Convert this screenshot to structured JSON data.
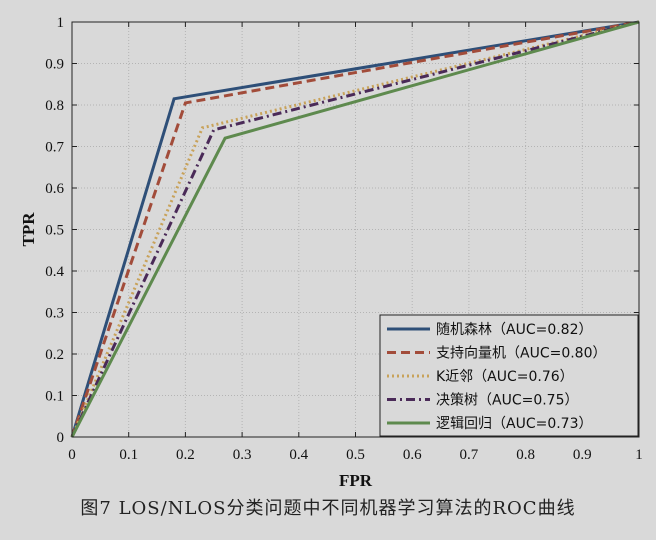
{
  "caption": "图7  LOS/NLOS分类问题中不同机器学习算法的ROC曲线",
  "chart_data": {
    "type": "line",
    "xlabel": "FPR",
    "ylabel": "TPR",
    "xlim": [
      0,
      1
    ],
    "ylim": [
      0,
      1
    ],
    "xticks": [
      0,
      0.1,
      0.2,
      0.3,
      0.4,
      0.5,
      0.6,
      0.7,
      0.8,
      0.9,
      1
    ],
    "yticks": [
      0,
      0.1,
      0.2,
      0.3,
      0.4,
      0.5,
      0.6,
      0.7,
      0.8,
      0.9,
      1
    ],
    "xtick_labels": [
      "0",
      "0.1",
      "0.2",
      "0.3",
      "0.4",
      "0.5",
      "0.6",
      "0.7",
      "0.8",
      "0.9",
      "1"
    ],
    "ytick_labels": [
      "0",
      "0.1",
      "0.2",
      "0.3",
      "0.4",
      "0.5",
      "0.6",
      "0.7",
      "0.8",
      "0.9",
      "1"
    ],
    "grid": true,
    "legend_position": "bottom-right",
    "series": [
      {
        "name": "随机森林（AUC=0.82）",
        "color": "#2e4f78",
        "dash": "solid",
        "x": [
          0,
          0.18,
          1
        ],
        "y": [
          0,
          0.815,
          1
        ]
      },
      {
        "name": "支持向量机（AUC=0.80）",
        "color": "#a24c3a",
        "dash": "dashed",
        "x": [
          0,
          0.2,
          1
        ],
        "y": [
          0,
          0.805,
          1
        ]
      },
      {
        "name": "K近邻（AUC=0.76）",
        "color": "#c8a25a",
        "dash": "dotted",
        "x": [
          0,
          0.23,
          1
        ],
        "y": [
          0,
          0.745,
          1
        ]
      },
      {
        "name": "决策树（AUC=0.75）",
        "color": "#4a2a58",
        "dash": "dashdot",
        "x": [
          0,
          0.25,
          1
        ],
        "y": [
          0,
          0.74,
          1
        ]
      },
      {
        "name": "逻辑回归（AUC=0.73）",
        "color": "#5e8a4e",
        "dash": "solid",
        "x": [
          0,
          0.27,
          1
        ],
        "y": [
          0,
          0.72,
          1
        ]
      }
    ]
  }
}
